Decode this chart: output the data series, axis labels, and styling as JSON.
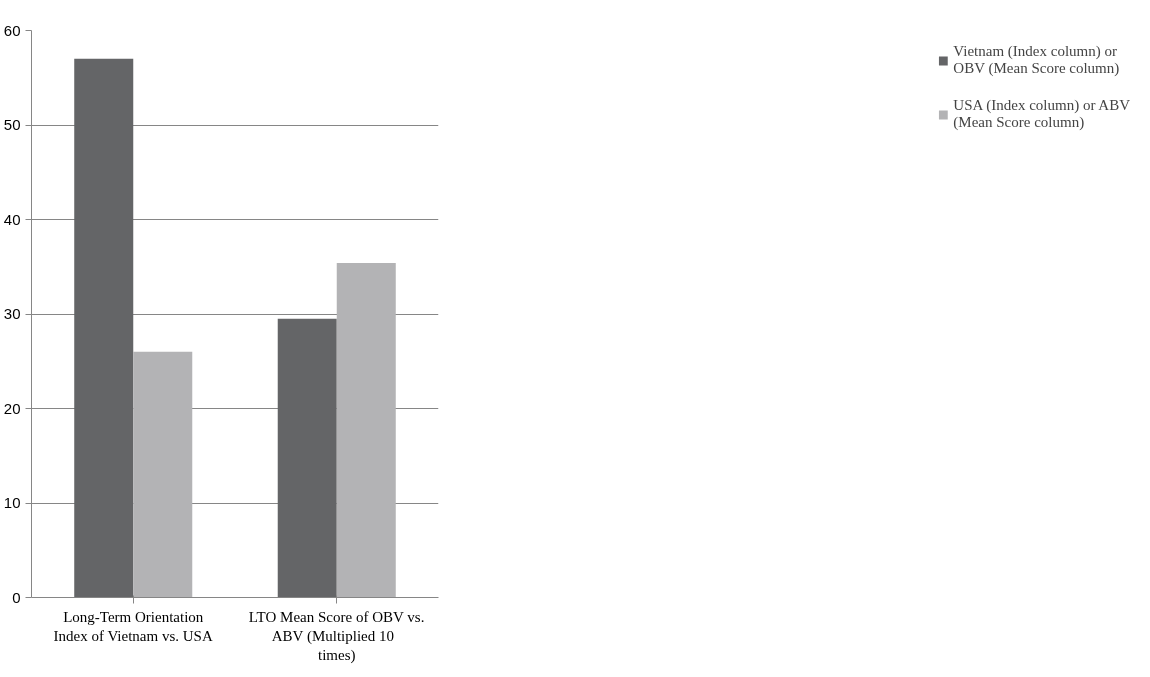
{
  "chart_data": {
    "type": "bar",
    "categories": [
      "Long-Term Orientation Index of Vietnam vs. USA",
      "LTO Mean Score of OBV vs. ABV   (Multiplied 10 times)"
    ],
    "series": [
      {
        "name": "Vietnam (Index column) or OBV (Mean Score column)",
        "color": "#646567",
        "values": [
          57,
          29.5
        ]
      },
      {
        "name": "USA (Index column) or ABV (Mean Score column)",
        "color": "#b3b3b5",
        "values": [
          26,
          35.4
        ]
      }
    ],
    "ylim": [
      0,
      60
    ],
    "yticks": [
      0,
      10,
      20,
      30,
      40,
      50,
      60
    ],
    "grid": "y",
    "legend": "right"
  }
}
